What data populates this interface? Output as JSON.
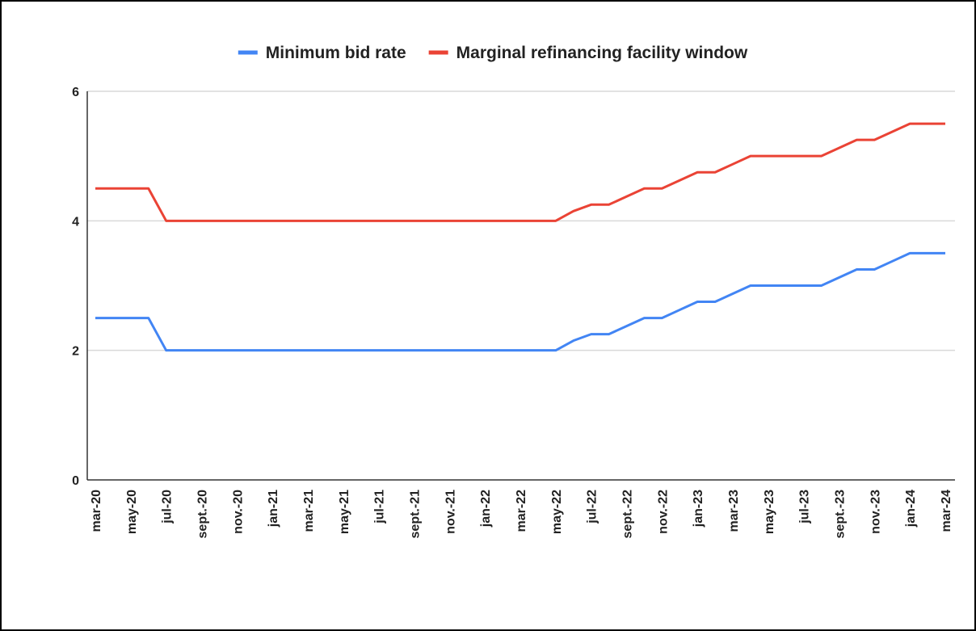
{
  "chart_data": {
    "type": "line",
    "categories": [
      "mar-20",
      null,
      "may-20",
      null,
      "jul-20",
      null,
      "sept.-20",
      null,
      "nov.-20",
      null,
      "jan-21",
      null,
      "mar-21",
      null,
      "may-21",
      null,
      "jul-21",
      null,
      "sept.-21",
      null,
      "nov.-21",
      null,
      "jan-22",
      null,
      "mar-22",
      null,
      "may-22",
      null,
      "jul-22",
      null,
      "sept.-22",
      null,
      "nov.-22",
      null,
      "jan-23",
      null,
      "mar-23",
      null,
      "may-23",
      null,
      "jul-23",
      null,
      "sept.-23",
      null,
      "nov.-23",
      null,
      "jan-24",
      null,
      "mar-24"
    ],
    "series": [
      {
        "name": "Minimum bid rate",
        "color": "#4285f4",
        "values": [
          2.5,
          2.5,
          2.5,
          2.5,
          2,
          2,
          2,
          2,
          2,
          2,
          2,
          2,
          2,
          2,
          2,
          2,
          2,
          2,
          2,
          2,
          2,
          2,
          2,
          2,
          2,
          2,
          2,
          2.15,
          2.25,
          2.25,
          2.375,
          2.5,
          2.5,
          2.625,
          2.75,
          2.75,
          2.875,
          3,
          3,
          3,
          3,
          3,
          3.125,
          3.25,
          3.25,
          3.375,
          3.5,
          3.5,
          3.5
        ]
      },
      {
        "name": "Marginal refinancing facility window",
        "color": "#ea4335",
        "values": [
          4.5,
          4.5,
          4.5,
          4.5,
          4,
          4,
          4,
          4,
          4,
          4,
          4,
          4,
          4,
          4,
          4,
          4,
          4,
          4,
          4,
          4,
          4,
          4,
          4,
          4,
          4,
          4,
          4,
          4.15,
          4.25,
          4.25,
          4.375,
          4.5,
          4.5,
          4.625,
          4.75,
          4.75,
          4.875,
          5,
          5,
          5,
          5,
          5,
          5.125,
          5.25,
          5.25,
          5.375,
          5.5,
          5.5,
          5.5
        ]
      }
    ],
    "ylim": [
      0,
      6
    ],
    "yticks": [
      0,
      2,
      4,
      6
    ],
    "grid": true,
    "legend": "top"
  }
}
